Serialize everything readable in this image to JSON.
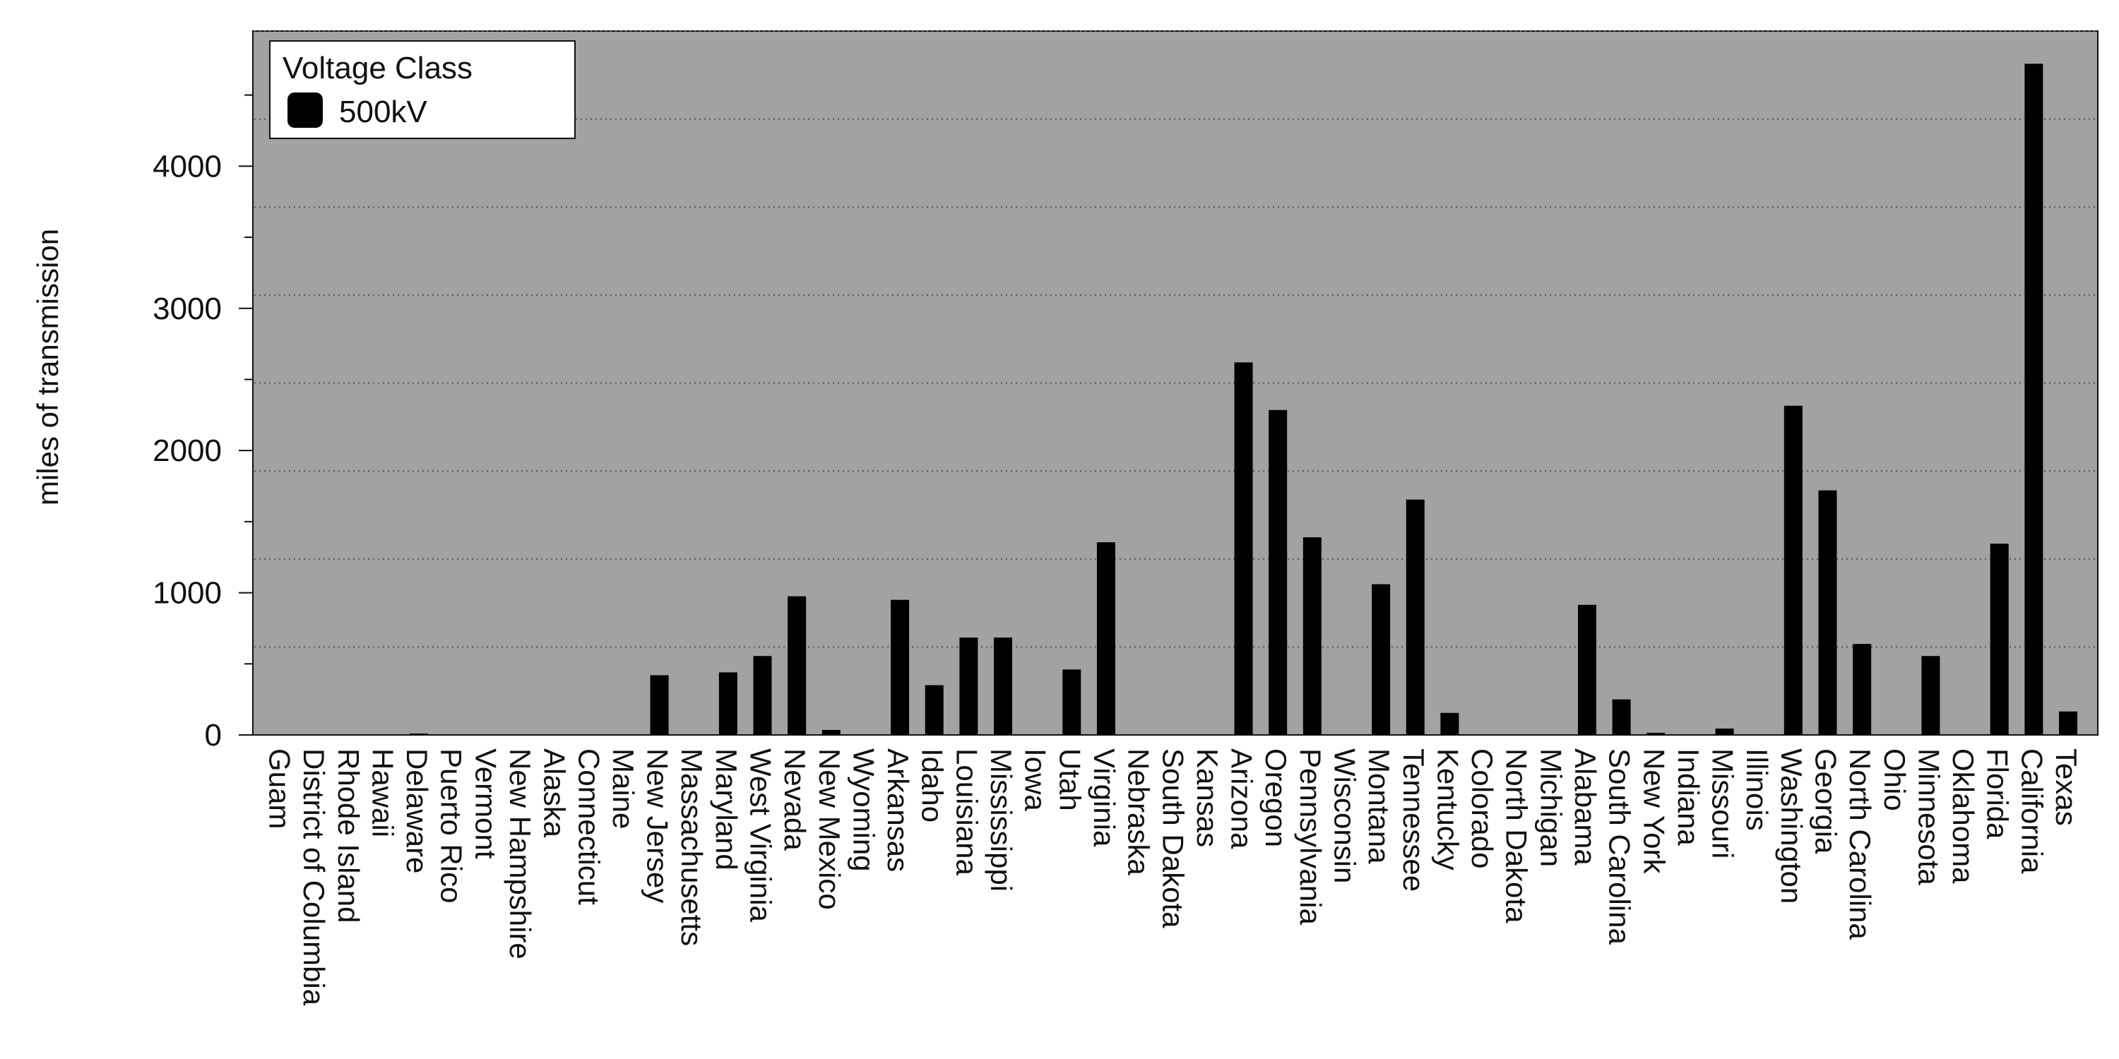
{
  "colors": {
    "plot_background": "#a2a2a2",
    "bar": "#000000",
    "grid": "#555555",
    "legend_background": "#ffffff"
  },
  "chart_data": {
    "type": "bar",
    "ylabel": "miles of transmission",
    "ylim": [
      0,
      4950
    ],
    "yticks": [
      0,
      1000,
      2000,
      3000,
      4000
    ],
    "y_minor_step": 500,
    "grid": "horizontal dotted",
    "legend": {
      "title": "Voltage Class",
      "placement": "top-left",
      "entries": [
        "500kV"
      ]
    },
    "categories": [
      "Guam",
      "District of Columbia",
      "Rhode Island",
      "Hawaii",
      "Delaware",
      "Puerto Rico",
      "Vermont",
      "New Hampshire",
      "Alaska",
      "Connecticut",
      "Maine",
      "New Jersey",
      "Massachusetts",
      "Maryland",
      "West Virginia",
      "Nevada",
      "New Mexico",
      "Wyoming",
      "Arkansas",
      "Idaho",
      "Louisiana",
      "Mississippi",
      "Iowa",
      "Utah",
      "Virginia",
      "Nebraska",
      "South Dakota",
      "Kansas",
      "Arizona",
      "Oregon",
      "Pennsylvania",
      "Wisconsin",
      "Montana",
      "Tennessee",
      "Kentucky",
      "Colorado",
      "North Dakota",
      "Michigan",
      "Alabama",
      "South Carolina",
      "New York",
      "Indiana",
      "Missouri",
      "Illinois",
      "Washington",
      "Georgia",
      "North Carolina",
      "Ohio",
      "Minnesota",
      "Oklahoma",
      "Florida",
      "California",
      "Texas"
    ],
    "series": [
      {
        "name": "500kV",
        "values": [
          0,
          0,
          0,
          0,
          10,
          0,
          0,
          0,
          0,
          0,
          0,
          420,
          0,
          440,
          555,
          975,
          35,
          0,
          950,
          350,
          685,
          685,
          0,
          460,
          1355,
          0,
          0,
          0,
          2620,
          2285,
          1390,
          0,
          1060,
          1655,
          155,
          0,
          0,
          0,
          915,
          250,
          15,
          0,
          45,
          0,
          2315,
          1720,
          640,
          0,
          555,
          0,
          1345,
          4720,
          165
        ]
      }
    ]
  }
}
